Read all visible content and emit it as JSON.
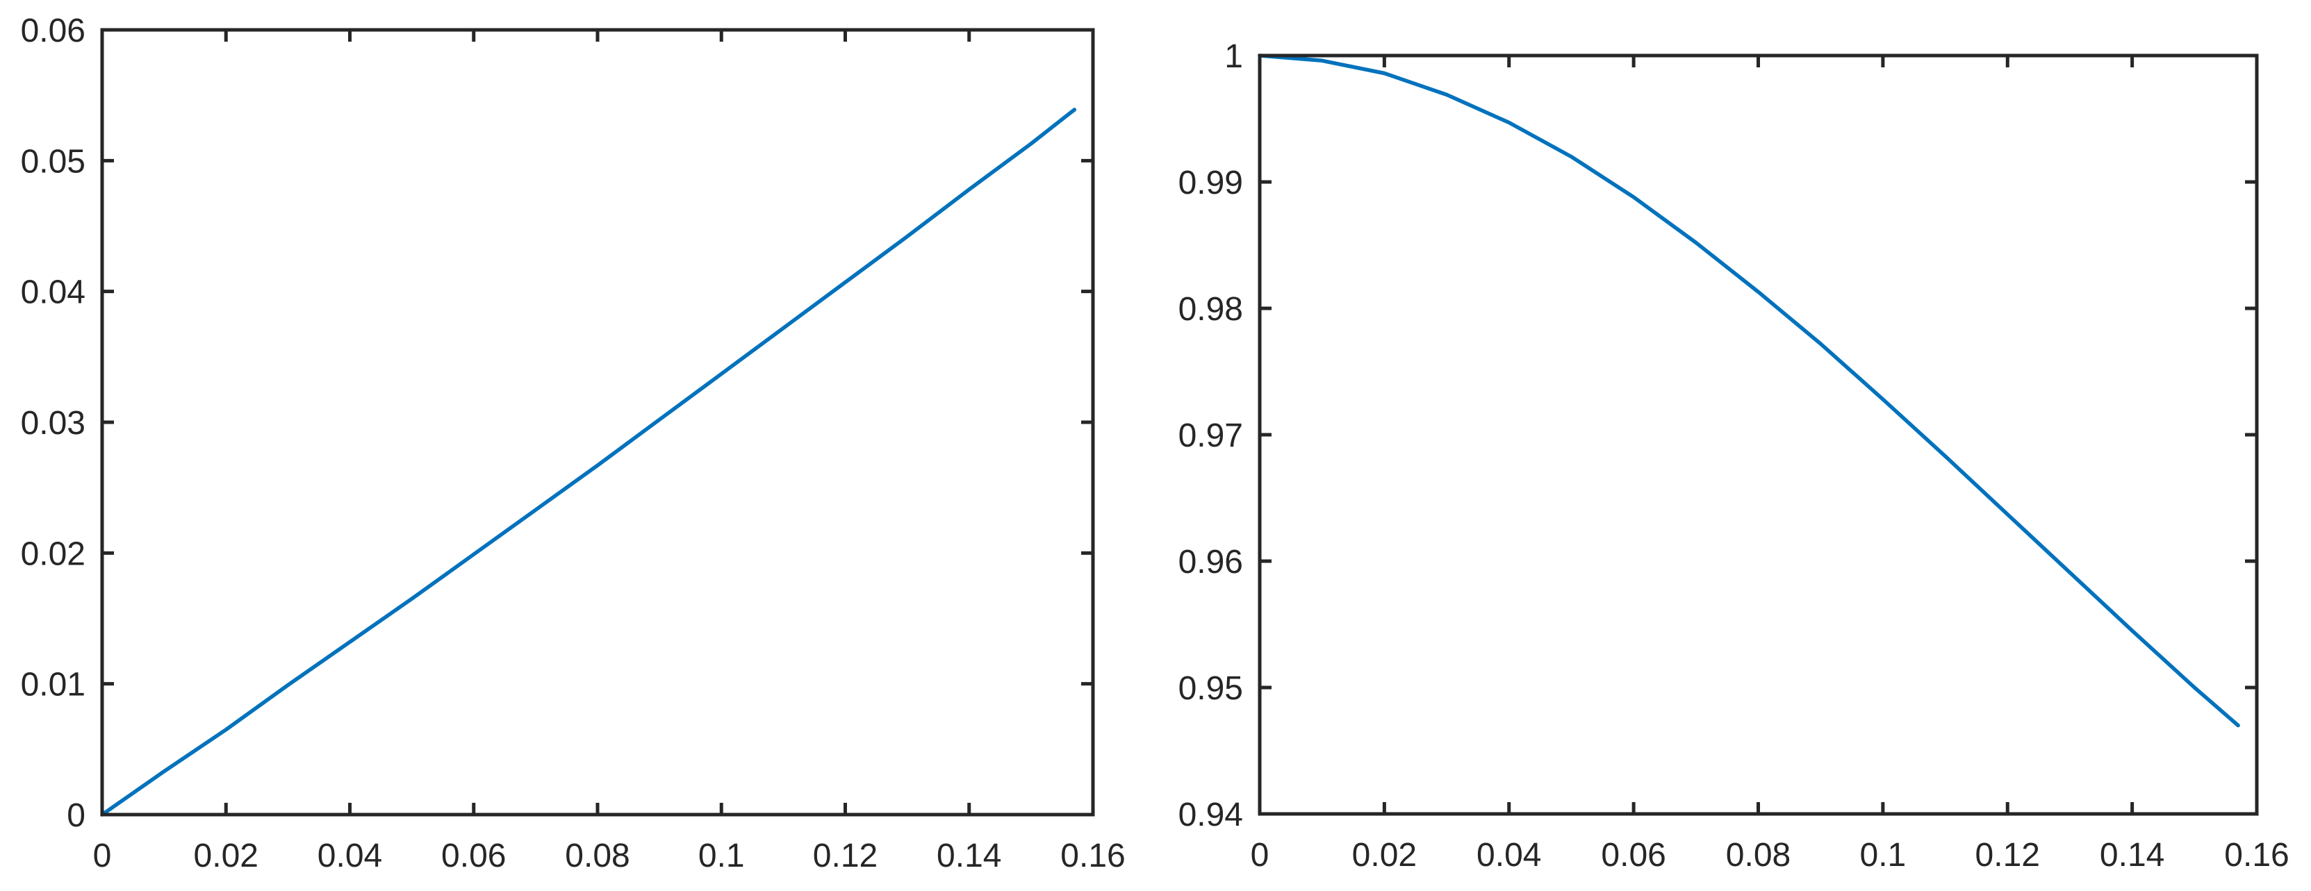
{
  "figure": {
    "background": "#ffffff",
    "axis_color": "#262626",
    "tick_label_color": "#262626",
    "line_color": "#0072BD"
  },
  "chart_data": [
    {
      "type": "line",
      "panel": "left",
      "title": "",
      "xlabel": "",
      "ylabel": "",
      "grid": false,
      "legend": null,
      "xlim": [
        0,
        0.16
      ],
      "ylim": [
        0,
        0.06
      ],
      "xtick_values": [
        0,
        0.02,
        0.04,
        0.06,
        0.08,
        0.1,
        0.12,
        0.14,
        0.16
      ],
      "xtick_labels": [
        "0",
        "0.02",
        "0.04",
        "0.06",
        "0.08",
        "0.1",
        "0.12",
        "0.14",
        "0.16"
      ],
      "ytick_values": [
        0,
        0.01,
        0.02,
        0.03,
        0.04,
        0.05,
        0.06
      ],
      "ytick_labels": [
        "0",
        "0.01",
        "0.02",
        "0.03",
        "0.04",
        "0.05",
        "0.06"
      ],
      "line_color": "#0072BD",
      "x": [
        0,
        0.01,
        0.02,
        0.03,
        0.04,
        0.05,
        0.06,
        0.07,
        0.08,
        0.09,
        0.1,
        0.11,
        0.12,
        0.13,
        0.14,
        0.15,
        0.157
      ],
      "y": [
        0,
        0.0033,
        0.0065,
        0.0099,
        0.0132,
        0.0165,
        0.0199,
        0.0233,
        0.0267,
        0.0302,
        0.0337,
        0.0372,
        0.0407,
        0.0442,
        0.0478,
        0.0513,
        0.0539
      ]
    },
    {
      "type": "line",
      "panel": "right",
      "title": "",
      "xlabel": "",
      "ylabel": "",
      "grid": false,
      "legend": null,
      "xlim": [
        0,
        0.16
      ],
      "ylim": [
        0.94,
        1.0
      ],
      "xtick_values": [
        0,
        0.02,
        0.04,
        0.06,
        0.08,
        0.1,
        0.12,
        0.14,
        0.16
      ],
      "xtick_labels": [
        "0",
        "0.02",
        "0.04",
        "0.06",
        "0.08",
        "0.1",
        "0.12",
        "0.14",
        "0.16"
      ],
      "ytick_values": [
        0.94,
        0.95,
        0.96,
        0.97,
        0.98,
        0.99,
        1
      ],
      "ytick_labels": [
        "0.94",
        "0.95",
        "0.96",
        "0.97",
        "0.98",
        "0.99",
        "1"
      ],
      "line_color": "#0072BD",
      "x": [
        0,
        0.01,
        0.02,
        0.03,
        0.04,
        0.05,
        0.06,
        0.07,
        0.08,
        0.09,
        0.1,
        0.11,
        0.12,
        0.13,
        0.14,
        0.15,
        0.157
      ],
      "y": [
        1.0,
        0.9996,
        0.9986,
        0.9969,
        0.9947,
        0.992,
        0.9888,
        0.9852,
        0.9813,
        0.9772,
        0.9728,
        0.9683,
        0.9637,
        0.9591,
        0.9545,
        0.95,
        0.947
      ]
    }
  ]
}
